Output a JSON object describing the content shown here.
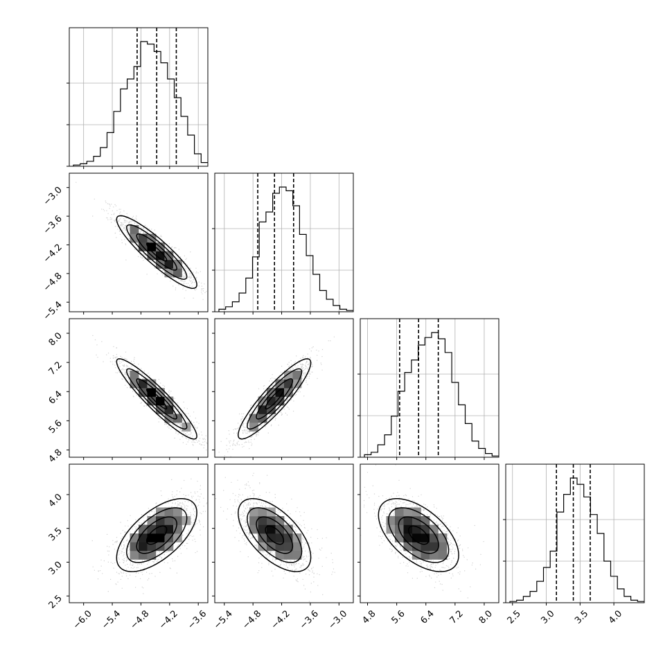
{
  "chart_data": {
    "type": "corner",
    "n_params": 4,
    "grid": true,
    "colors": {
      "line": "#000000",
      "grid": "#b0b0b0",
      "scatter": "#9a9a9a"
    },
    "params": [
      {
        "range": [
          -6.3,
          -3.4
        ],
        "ticks": [
          -6.0,
          -5.4,
          -4.8,
          -4.2,
          -3.6
        ],
        "tick_labels": [
          "−6.0",
          "−5.4",
          "−4.8",
          "−4.2",
          "−3.6"
        ],
        "quantiles": [
          -4.88,
          -4.47,
          -4.06
        ],
        "hist_counts": [
          1,
          2,
          4,
          8,
          15,
          27,
          44,
          62,
          70,
          80,
          100,
          98,
          92,
          83,
          70,
          55,
          40,
          25,
          10,
          3
        ]
      },
      {
        "range": [
          -5.6,
          -2.7
        ],
        "ticks": [
          -5.4,
          -4.8,
          -4.2,
          -3.6,
          -3.0
        ],
        "tick_labels": [
          "−5.4",
          "−4.8",
          "−4.2",
          "−3.6",
          "−3.0"
        ],
        "quantiles": [
          -4.7,
          -4.35,
          -3.95
        ],
        "hist_counts": [
          2,
          4,
          8,
          15,
          27,
          44,
          72,
          80,
          95,
          100,
          97,
          85,
          62,
          45,
          30,
          17,
          10,
          5,
          2,
          1
        ]
      },
      {
        "range": [
          4.6,
          8.4
        ],
        "ticks": [
          4.8,
          5.6,
          6.4,
          7.2,
          8.0
        ],
        "tick_labels": [
          "4.8",
          "5.6",
          "6.4",
          "7.2",
          "8.0"
        ],
        "quantiles": [
          5.68,
          6.2,
          6.74
        ],
        "hist_counts": [
          2,
          4,
          10,
          18,
          33,
          53,
          68,
          78,
          90,
          96,
          100,
          95,
          84,
          60,
          42,
          27,
          13,
          7,
          3,
          1
        ]
      },
      {
        "range": [
          2.4,
          4.45
        ],
        "ticks": [
          2.5,
          3.0,
          3.5,
          4.0
        ],
        "tick_labels": [
          "2.5",
          "3.0",
          "3.5",
          "4.0"
        ],
        "row_tick_labels": [
          "2.5",
          "3.0",
          "3.5",
          "4.0"
        ],
        "quantiles": [
          3.15,
          3.4,
          3.65
        ],
        "hist_counts": [
          1,
          2,
          5,
          9,
          17,
          28,
          41,
          72,
          86,
          99,
          94,
          84,
          70,
          55,
          33,
          21,
          11,
          5,
          2,
          1
        ]
      }
    ],
    "pairs": [
      {
        "row": 1,
        "col": 0,
        "mean": [
          -4.47,
          -4.35
        ],
        "sd": [
          0.42,
          0.38
        ],
        "rho": -0.9
      },
      {
        "row": 2,
        "col": 0,
        "mean": [
          -4.47,
          6.2
        ],
        "sd": [
          0.42,
          0.55
        ],
        "rho": -0.93
      },
      {
        "row": 2,
        "col": 1,
        "mean": [
          -4.35,
          6.2
        ],
        "sd": [
          0.38,
          0.55
        ],
        "rho": 0.9
      },
      {
        "row": 3,
        "col": 0,
        "mean": [
          -4.47,
          3.4
        ],
        "sd": [
          0.42,
          0.27
        ],
        "rho": 0.62
      },
      {
        "row": 3,
        "col": 1,
        "mean": [
          -4.35,
          3.4
        ],
        "sd": [
          0.38,
          0.27
        ],
        "rho": -0.6
      },
      {
        "row": 3,
        "col": 2,
        "mean": [
          6.2,
          3.4
        ],
        "sd": [
          0.55,
          0.27
        ],
        "rho": -0.55
      }
    ]
  }
}
